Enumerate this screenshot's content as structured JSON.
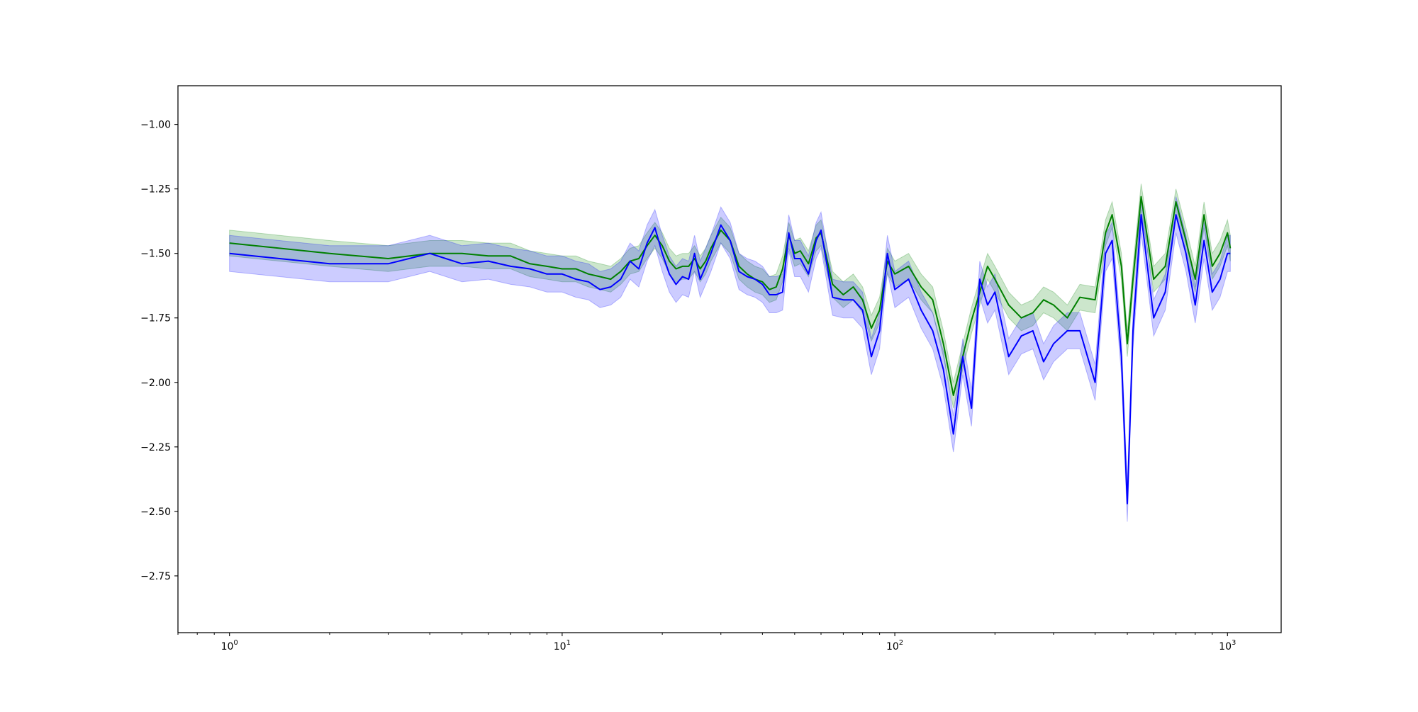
{
  "chart_data": {
    "type": "line",
    "title": "",
    "xlabel": "",
    "ylabel": "",
    "xscale": "log",
    "xlim": [
      0.7,
      1450
    ],
    "ylim": [
      -2.97,
      -0.85
    ],
    "grid": false,
    "legend": "none",
    "x_ticks": [
      {
        "value": 1,
        "label": "10",
        "exp": "0"
      },
      {
        "value": 10,
        "label": "10",
        "exp": "1"
      },
      {
        "value": 100,
        "label": "10",
        "exp": "2"
      },
      {
        "value": 1000,
        "label": "10",
        "exp": "3"
      }
    ],
    "y_ticks": [
      {
        "value": -1.0,
        "label": "−1.00"
      },
      {
        "value": -1.25,
        "label": "−1.25"
      },
      {
        "value": -1.5,
        "label": "−1.50"
      },
      {
        "value": -1.75,
        "label": "−1.75"
      },
      {
        "value": -2.0,
        "label": "−2.00"
      },
      {
        "value": -2.25,
        "label": "−2.25"
      },
      {
        "value": -2.5,
        "label": "−2.50"
      },
      {
        "value": -2.75,
        "label": "−2.75"
      }
    ],
    "series": [
      {
        "color": "#008000",
        "band_color": "#008000",
        "band_opacity": 0.2,
        "band_halfwidth": 0.05,
        "x": [
          1,
          2,
          3,
          4,
          5,
          6,
          7,
          8,
          9,
          10,
          11,
          12,
          13,
          14,
          15,
          16,
          17,
          18,
          19,
          20,
          21,
          22,
          23,
          24,
          25,
          26,
          27,
          28,
          30,
          32,
          34,
          36,
          38,
          40,
          42,
          44,
          46,
          48,
          50,
          52,
          55,
          58,
          60,
          65,
          70,
          75,
          80,
          85,
          90,
          95,
          100,
          110,
          120,
          130,
          140,
          150,
          160,
          170,
          180,
          190,
          200,
          220,
          240,
          260,
          280,
          300,
          330,
          360,
          400,
          430,
          450,
          480,
          500,
          520,
          550,
          600,
          650,
          700,
          750,
          800,
          850,
          900,
          950,
          1000,
          1020
        ],
        "y": [
          -1.46,
          -1.5,
          -1.52,
          -1.5,
          -1.5,
          -1.51,
          -1.51,
          -1.54,
          -1.55,
          -1.56,
          -1.56,
          -1.58,
          -1.59,
          -1.6,
          -1.57,
          -1.53,
          -1.52,
          -1.47,
          -1.43,
          -1.47,
          -1.53,
          -1.56,
          -1.55,
          -1.55,
          -1.52,
          -1.56,
          -1.53,
          -1.48,
          -1.41,
          -1.45,
          -1.55,
          -1.58,
          -1.6,
          -1.61,
          -1.64,
          -1.63,
          -1.56,
          -1.43,
          -1.5,
          -1.49,
          -1.54,
          -1.44,
          -1.42,
          -1.62,
          -1.66,
          -1.63,
          -1.68,
          -1.79,
          -1.72,
          -1.53,
          -1.58,
          -1.55,
          -1.63,
          -1.68,
          -1.85,
          -2.05,
          -1.9,
          -1.76,
          -1.65,
          -1.55,
          -1.6,
          -1.7,
          -1.75,
          -1.73,
          -1.68,
          -1.7,
          -1.75,
          -1.67,
          -1.68,
          -1.42,
          -1.35,
          -1.55,
          -1.85,
          -1.6,
          -1.28,
          -1.6,
          -1.55,
          -1.3,
          -1.45,
          -1.6,
          -1.35,
          -1.55,
          -1.5,
          -1.42,
          -1.48
        ]
      },
      {
        "color": "#0000ff",
        "band_color": "#0000ff",
        "band_opacity": 0.2,
        "band_halfwidth": 0.07,
        "x": [
          1,
          2,
          3,
          4,
          5,
          6,
          7,
          8,
          9,
          10,
          11,
          12,
          13,
          14,
          15,
          16,
          17,
          18,
          19,
          20,
          21,
          22,
          23,
          24,
          25,
          26,
          27,
          28,
          30,
          32,
          34,
          36,
          38,
          40,
          42,
          44,
          46,
          48,
          50,
          52,
          55,
          58,
          60,
          65,
          70,
          75,
          80,
          85,
          90,
          95,
          100,
          110,
          120,
          130,
          140,
          150,
          160,
          170,
          180,
          190,
          200,
          220,
          240,
          260,
          280,
          300,
          330,
          360,
          400,
          430,
          450,
          480,
          500,
          520,
          550,
          600,
          650,
          700,
          750,
          800,
          850,
          900,
          950,
          1000,
          1020
        ],
        "y": [
          -1.5,
          -1.54,
          -1.54,
          -1.5,
          -1.54,
          -1.53,
          -1.55,
          -1.56,
          -1.58,
          -1.58,
          -1.6,
          -1.61,
          -1.64,
          -1.63,
          -1.6,
          -1.53,
          -1.56,
          -1.46,
          -1.4,
          -1.5,
          -1.58,
          -1.62,
          -1.59,
          -1.6,
          -1.5,
          -1.6,
          -1.55,
          -1.5,
          -1.39,
          -1.45,
          -1.57,
          -1.59,
          -1.6,
          -1.62,
          -1.66,
          -1.66,
          -1.65,
          -1.42,
          -1.52,
          -1.52,
          -1.58,
          -1.45,
          -1.41,
          -1.67,
          -1.68,
          -1.68,
          -1.72,
          -1.9,
          -1.8,
          -1.5,
          -1.64,
          -1.6,
          -1.72,
          -1.8,
          -1.95,
          -2.2,
          -1.9,
          -2.1,
          -1.6,
          -1.7,
          -1.65,
          -1.9,
          -1.82,
          -1.8,
          -1.92,
          -1.85,
          -1.8,
          -1.8,
          -2.0,
          -1.5,
          -1.45,
          -1.9,
          -2.47,
          -1.8,
          -1.35,
          -1.75,
          -1.65,
          -1.35,
          -1.5,
          -1.7,
          -1.45,
          -1.65,
          -1.6,
          -1.5,
          -1.5
        ]
      }
    ]
  }
}
